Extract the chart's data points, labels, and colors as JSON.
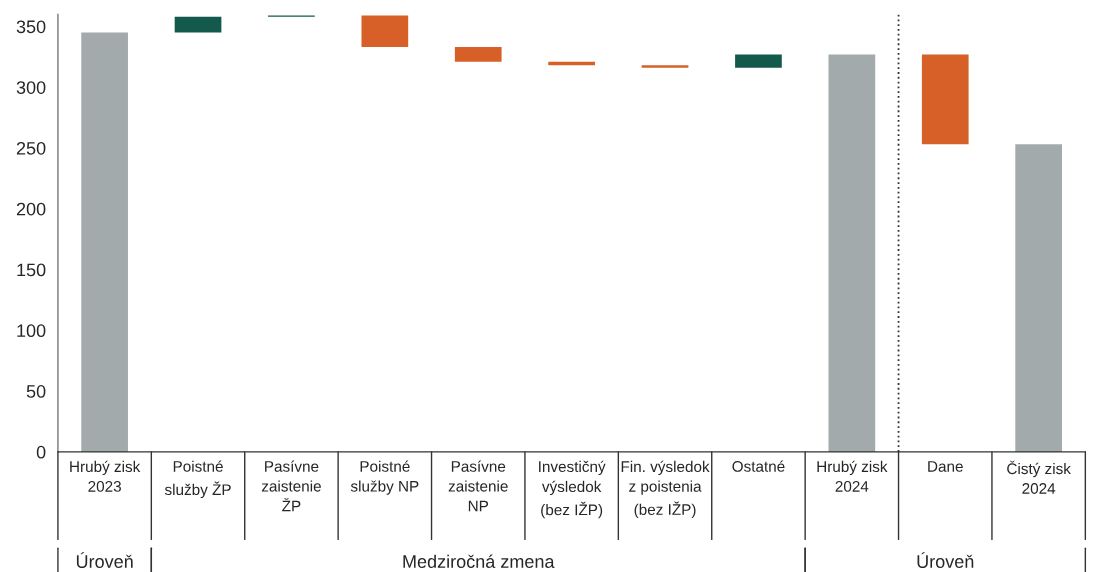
{
  "chart_data": {
    "type": "bar",
    "categories": [
      "Hrubý zisk\n2023",
      "Poistné\nslužby ŽP",
      "Pasívne\nzaistenie\nŽP",
      "Poistné\nslužby NP",
      "Pasívne\nzaistenie\nNP",
      "Investičný\nvýsledok\n(bez IŽP)",
      "Fin. výsledok\nz poistenia\n(bez IŽP)",
      "Ostatné",
      "Hrubý zisk\n2024",
      "Dane",
      "Čistý zisk\n2024"
    ],
    "values": [
      345,
      13,
      1,
      -26,
      -12,
      -3,
      -2,
      11,
      327,
      -74,
      253
    ],
    "base": [
      0,
      345,
      358,
      359,
      333,
      321,
      318,
      316,
      0,
      327,
      0
    ],
    "colors": [
      "#a3aaac",
      "#135a4c",
      "#135a4c",
      "#d66027",
      "#d66027",
      "#d66027",
      "#d66027",
      "#135a4c",
      "#a3aaac",
      "#d66027",
      "#a3aaac"
    ],
    "ylim": [
      0,
      360
    ],
    "yticks": [
      0,
      50,
      100,
      150,
      200,
      250,
      300,
      350
    ],
    "annotations": [
      "Úroveň",
      "Medziročná zmena",
      "Úroveň"
    ]
  }
}
